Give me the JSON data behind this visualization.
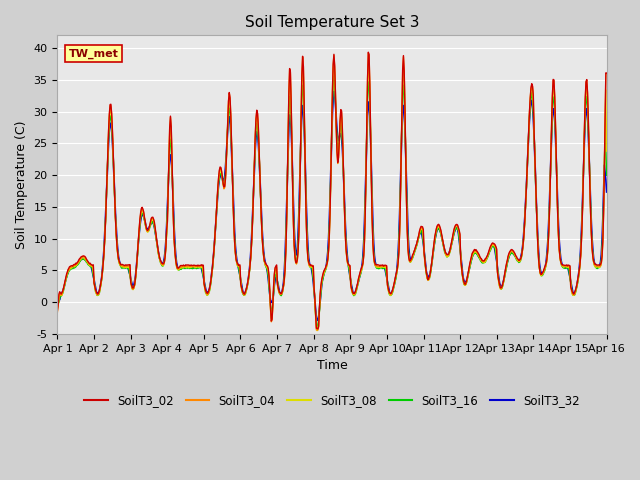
{
  "title": "Soil Temperature Set 3",
  "xlabel": "Time",
  "ylabel": "Soil Temperature (C)",
  "ylim": [
    -5,
    42
  ],
  "yticks": [
    -5,
    0,
    5,
    10,
    15,
    20,
    25,
    30,
    35,
    40
  ],
  "x_tick_labels": [
    "Apr 1",
    "Apr 2",
    "Apr 3",
    "Apr 4",
    "Apr 5",
    "Apr 6",
    "Apr 7",
    "Apr 8",
    "Apr 9",
    "Apr 10",
    "Apr 11",
    "Apr 12",
    "Apr 13",
    "Apr 14",
    "Apr 15",
    "Apr 16"
  ],
  "series_names": [
    "SoilT3_02",
    "SoilT3_04",
    "SoilT3_08",
    "SoilT3_16",
    "SoilT3_32"
  ],
  "series_colors": [
    "#cc0000",
    "#ff8800",
    "#dddd00",
    "#00cc00",
    "#0000cc"
  ],
  "series_linewidths": [
    1.0,
    1.0,
    1.0,
    1.0,
    1.2
  ],
  "legend_label": "TW_met",
  "legend_box_facecolor": "#ffff99",
  "legend_box_edgecolor": "#cc0000",
  "fig_facecolor": "#d0d0d0",
  "plot_facecolor": "#e8e8e8",
  "title_fontsize": 11,
  "axis_label_fontsize": 9,
  "tick_fontsize": 8,
  "n_points": 720
}
